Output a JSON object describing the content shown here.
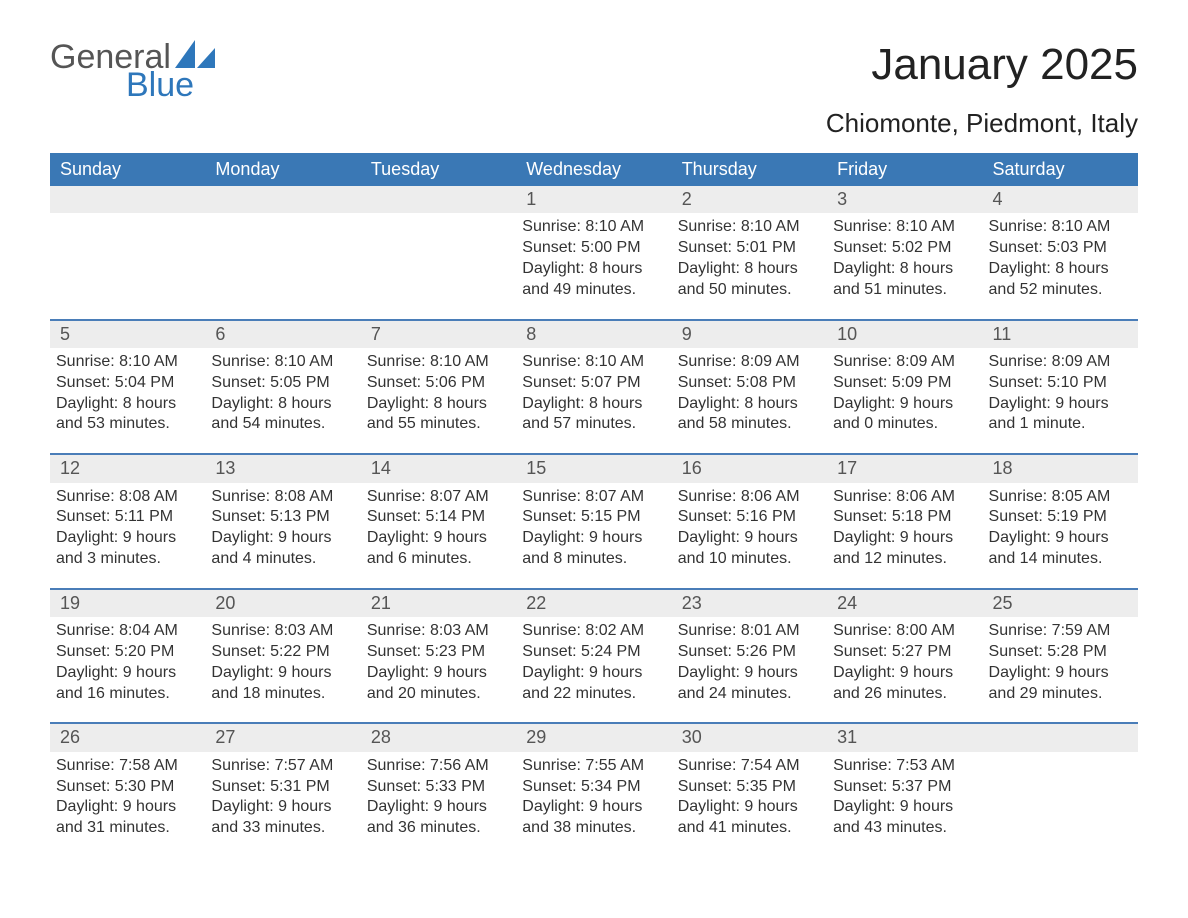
{
  "brand": {
    "word1": "General",
    "word2": "Blue"
  },
  "title": "January 2025",
  "location": "Chiomonte, Piedmont, Italy",
  "weekdays": [
    "Sunday",
    "Monday",
    "Tuesday",
    "Wednesday",
    "Thursday",
    "Friday",
    "Saturday"
  ],
  "colors": {
    "header_blue": "#3a78b5",
    "divider_blue": "#4a7db8",
    "cell_grey": "#ededed",
    "brand_blue": "#2e77bb",
    "brand_grey": "#555555",
    "text_dark": "#333333",
    "background": "#ffffff"
  },
  "weeks": [
    [
      {
        "day": "",
        "sunrise": "",
        "sunset": "",
        "daylight_line1": "",
        "daylight_line2": ""
      },
      {
        "day": "",
        "sunrise": "",
        "sunset": "",
        "daylight_line1": "",
        "daylight_line2": ""
      },
      {
        "day": "",
        "sunrise": "",
        "sunset": "",
        "daylight_line1": "",
        "daylight_line2": ""
      },
      {
        "day": "1",
        "sunrise": "Sunrise: 8:10 AM",
        "sunset": "Sunset: 5:00 PM",
        "daylight_line1": "Daylight: 8 hours",
        "daylight_line2": "and 49 minutes."
      },
      {
        "day": "2",
        "sunrise": "Sunrise: 8:10 AM",
        "sunset": "Sunset: 5:01 PM",
        "daylight_line1": "Daylight: 8 hours",
        "daylight_line2": "and 50 minutes."
      },
      {
        "day": "3",
        "sunrise": "Sunrise: 8:10 AM",
        "sunset": "Sunset: 5:02 PM",
        "daylight_line1": "Daylight: 8 hours",
        "daylight_line2": "and 51 minutes."
      },
      {
        "day": "4",
        "sunrise": "Sunrise: 8:10 AM",
        "sunset": "Sunset: 5:03 PM",
        "daylight_line1": "Daylight: 8 hours",
        "daylight_line2": "and 52 minutes."
      }
    ],
    [
      {
        "day": "5",
        "sunrise": "Sunrise: 8:10 AM",
        "sunset": "Sunset: 5:04 PM",
        "daylight_line1": "Daylight: 8 hours",
        "daylight_line2": "and 53 minutes."
      },
      {
        "day": "6",
        "sunrise": "Sunrise: 8:10 AM",
        "sunset": "Sunset: 5:05 PM",
        "daylight_line1": "Daylight: 8 hours",
        "daylight_line2": "and 54 minutes."
      },
      {
        "day": "7",
        "sunrise": "Sunrise: 8:10 AM",
        "sunset": "Sunset: 5:06 PM",
        "daylight_line1": "Daylight: 8 hours",
        "daylight_line2": "and 55 minutes."
      },
      {
        "day": "8",
        "sunrise": "Sunrise: 8:10 AM",
        "sunset": "Sunset: 5:07 PM",
        "daylight_line1": "Daylight: 8 hours",
        "daylight_line2": "and 57 minutes."
      },
      {
        "day": "9",
        "sunrise": "Sunrise: 8:09 AM",
        "sunset": "Sunset: 5:08 PM",
        "daylight_line1": "Daylight: 8 hours",
        "daylight_line2": "and 58 minutes."
      },
      {
        "day": "10",
        "sunrise": "Sunrise: 8:09 AM",
        "sunset": "Sunset: 5:09 PM",
        "daylight_line1": "Daylight: 9 hours",
        "daylight_line2": "and 0 minutes."
      },
      {
        "day": "11",
        "sunrise": "Sunrise: 8:09 AM",
        "sunset": "Sunset: 5:10 PM",
        "daylight_line1": "Daylight: 9 hours",
        "daylight_line2": "and 1 minute."
      }
    ],
    [
      {
        "day": "12",
        "sunrise": "Sunrise: 8:08 AM",
        "sunset": "Sunset: 5:11 PM",
        "daylight_line1": "Daylight: 9 hours",
        "daylight_line2": "and 3 minutes."
      },
      {
        "day": "13",
        "sunrise": "Sunrise: 8:08 AM",
        "sunset": "Sunset: 5:13 PM",
        "daylight_line1": "Daylight: 9 hours",
        "daylight_line2": "and 4 minutes."
      },
      {
        "day": "14",
        "sunrise": "Sunrise: 8:07 AM",
        "sunset": "Sunset: 5:14 PM",
        "daylight_line1": "Daylight: 9 hours",
        "daylight_line2": "and 6 minutes."
      },
      {
        "day": "15",
        "sunrise": "Sunrise: 8:07 AM",
        "sunset": "Sunset: 5:15 PM",
        "daylight_line1": "Daylight: 9 hours",
        "daylight_line2": "and 8 minutes."
      },
      {
        "day": "16",
        "sunrise": "Sunrise: 8:06 AM",
        "sunset": "Sunset: 5:16 PM",
        "daylight_line1": "Daylight: 9 hours",
        "daylight_line2": "and 10 minutes."
      },
      {
        "day": "17",
        "sunrise": "Sunrise: 8:06 AM",
        "sunset": "Sunset: 5:18 PM",
        "daylight_line1": "Daylight: 9 hours",
        "daylight_line2": "and 12 minutes."
      },
      {
        "day": "18",
        "sunrise": "Sunrise: 8:05 AM",
        "sunset": "Sunset: 5:19 PM",
        "daylight_line1": "Daylight: 9 hours",
        "daylight_line2": "and 14 minutes."
      }
    ],
    [
      {
        "day": "19",
        "sunrise": "Sunrise: 8:04 AM",
        "sunset": "Sunset: 5:20 PM",
        "daylight_line1": "Daylight: 9 hours",
        "daylight_line2": "and 16 minutes."
      },
      {
        "day": "20",
        "sunrise": "Sunrise: 8:03 AM",
        "sunset": "Sunset: 5:22 PM",
        "daylight_line1": "Daylight: 9 hours",
        "daylight_line2": "and 18 minutes."
      },
      {
        "day": "21",
        "sunrise": "Sunrise: 8:03 AM",
        "sunset": "Sunset: 5:23 PM",
        "daylight_line1": "Daylight: 9 hours",
        "daylight_line2": "and 20 minutes."
      },
      {
        "day": "22",
        "sunrise": "Sunrise: 8:02 AM",
        "sunset": "Sunset: 5:24 PM",
        "daylight_line1": "Daylight: 9 hours",
        "daylight_line2": "and 22 minutes."
      },
      {
        "day": "23",
        "sunrise": "Sunrise: 8:01 AM",
        "sunset": "Sunset: 5:26 PM",
        "daylight_line1": "Daylight: 9 hours",
        "daylight_line2": "and 24 minutes."
      },
      {
        "day": "24",
        "sunrise": "Sunrise: 8:00 AM",
        "sunset": "Sunset: 5:27 PM",
        "daylight_line1": "Daylight: 9 hours",
        "daylight_line2": "and 26 minutes."
      },
      {
        "day": "25",
        "sunrise": "Sunrise: 7:59 AM",
        "sunset": "Sunset: 5:28 PM",
        "daylight_line1": "Daylight: 9 hours",
        "daylight_line2": "and 29 minutes."
      }
    ],
    [
      {
        "day": "26",
        "sunrise": "Sunrise: 7:58 AM",
        "sunset": "Sunset: 5:30 PM",
        "daylight_line1": "Daylight: 9 hours",
        "daylight_line2": "and 31 minutes."
      },
      {
        "day": "27",
        "sunrise": "Sunrise: 7:57 AM",
        "sunset": "Sunset: 5:31 PM",
        "daylight_line1": "Daylight: 9 hours",
        "daylight_line2": "and 33 minutes."
      },
      {
        "day": "28",
        "sunrise": "Sunrise: 7:56 AM",
        "sunset": "Sunset: 5:33 PM",
        "daylight_line1": "Daylight: 9 hours",
        "daylight_line2": "and 36 minutes."
      },
      {
        "day": "29",
        "sunrise": "Sunrise: 7:55 AM",
        "sunset": "Sunset: 5:34 PM",
        "daylight_line1": "Daylight: 9 hours",
        "daylight_line2": "and 38 minutes."
      },
      {
        "day": "30",
        "sunrise": "Sunrise: 7:54 AM",
        "sunset": "Sunset: 5:35 PM",
        "daylight_line1": "Daylight: 9 hours",
        "daylight_line2": "and 41 minutes."
      },
      {
        "day": "31",
        "sunrise": "Sunrise: 7:53 AM",
        "sunset": "Sunset: 5:37 PM",
        "daylight_line1": "Daylight: 9 hours",
        "daylight_line2": "and 43 minutes."
      },
      {
        "day": "",
        "sunrise": "",
        "sunset": "",
        "daylight_line1": "",
        "daylight_line2": ""
      }
    ]
  ]
}
